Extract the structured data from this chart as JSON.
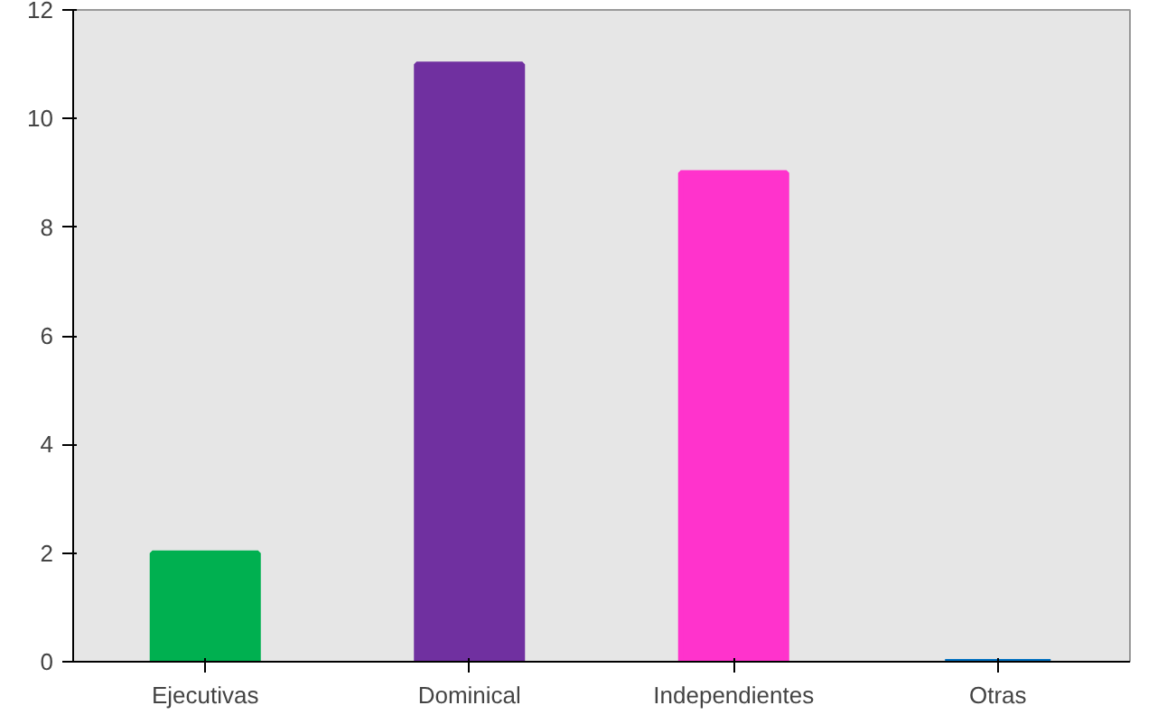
{
  "chart_data": {
    "type": "bar",
    "categories": [
      "Ejecutivas",
      "Dominical",
      "Independientes",
      "Otras"
    ],
    "values": [
      2,
      11,
      9,
      0
    ],
    "colors": [
      "#00b050",
      "#7030a0",
      "#ff33cc",
      "#0070c0"
    ],
    "ylim": [
      0,
      12
    ],
    "yticks": [
      0,
      2,
      4,
      6,
      8,
      10,
      12
    ],
    "grid": false
  }
}
